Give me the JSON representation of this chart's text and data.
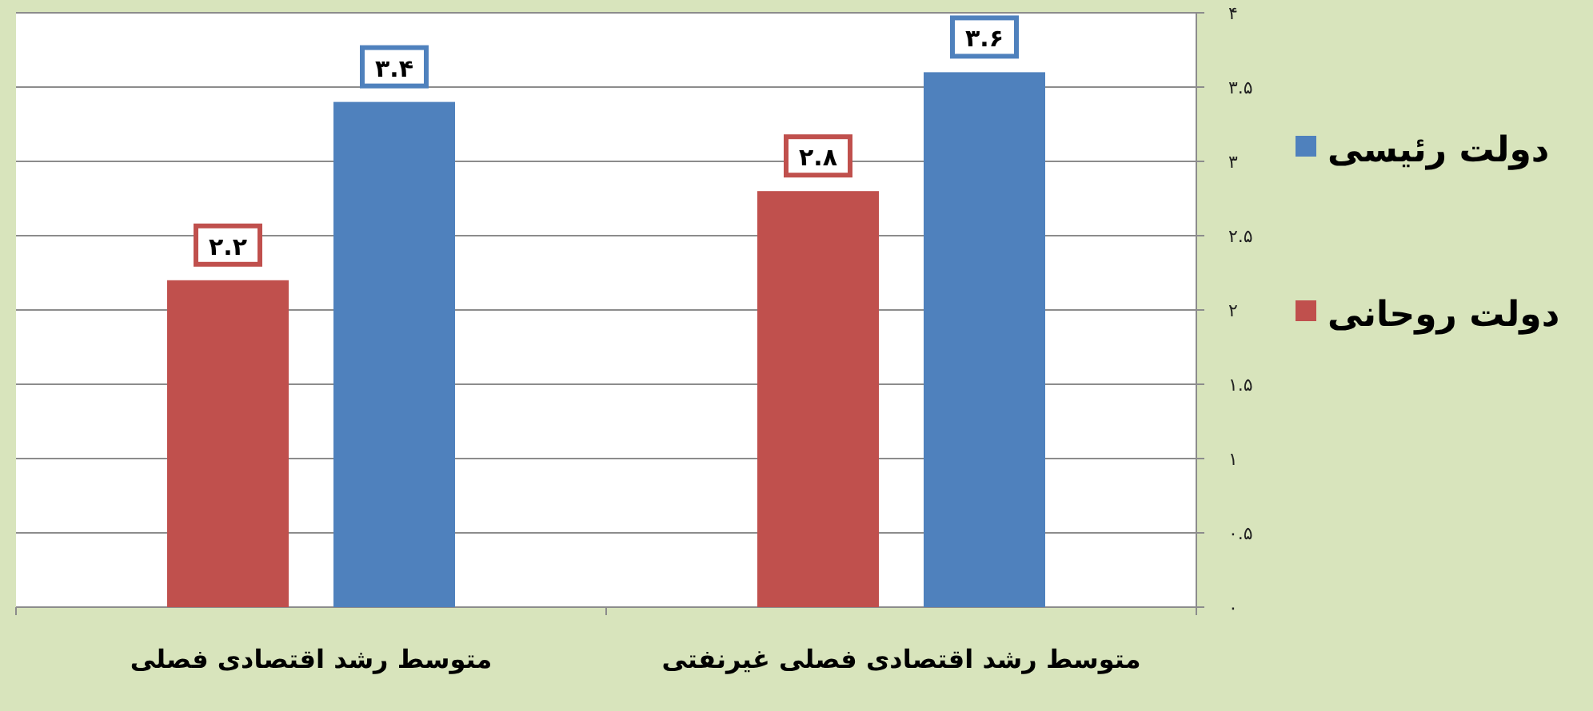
{
  "chart_data": {
    "type": "bar",
    "categories": [
      "متوسط رشد اقتصادی فصلی",
      "متوسط رشد اقتصادی فصلی غیرنفتی"
    ],
    "series": [
      {
        "name": "دولت روحانی",
        "color": "#c0504d",
        "values": [
          2.2,
          2.8
        ],
        "value_labels": [
          "۲.۲",
          "۲.۸"
        ]
      },
      {
        "name": "دولت رئیسی",
        "color": "#4f81bd",
        "values": [
          3.4,
          3.6
        ],
        "value_labels": [
          "۳.۴",
          "۳.۶"
        ]
      }
    ],
    "ylim": [
      0,
      4
    ],
    "yticks": [
      {
        "value": 0,
        "label": "۰"
      },
      {
        "value": 0.5,
        "label": "۰.۵"
      },
      {
        "value": 1,
        "label": "۱"
      },
      {
        "value": 1.5,
        "label": "۱.۵"
      },
      {
        "value": 2,
        "label": "۲"
      },
      {
        "value": 2.5,
        "label": "۲.۵"
      },
      {
        "value": 3,
        "label": "۳"
      },
      {
        "value": 3.5,
        "label": "۳.۵"
      },
      {
        "value": 4,
        "label": "۴"
      }
    ],
    "grid": "y",
    "legend": "right"
  }
}
